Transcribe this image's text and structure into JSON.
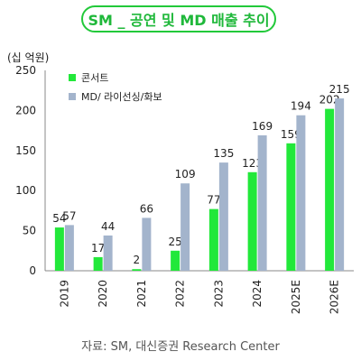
{
  "title": "SM _ 공연 및 MD 매출 추이",
  "source": "자료: SM, 대신증권 Research Center",
  "colors": {
    "concert": "#22e83a",
    "md": "#a3b4cc",
    "accent": "#1fb83a"
  },
  "chart_data": {
    "type": "bar",
    "title": "SM _ 공연 및 MD 매출 추이",
    "unit_label": "(십 억원)",
    "categories": [
      "2019",
      "2020",
      "2021",
      "2022",
      "2023",
      "2024",
      "2025E",
      "2026E"
    ],
    "series": [
      {
        "name": "콘서트",
        "values": [
          54,
          17,
          2,
          25,
          77,
          123,
          159,
          202
        ]
      },
      {
        "name": "MD/ 라이선싱/화보",
        "values": [
          57,
          44,
          66,
          109,
          135,
          169,
          194,
          215
        ]
      }
    ],
    "ylim": [
      0,
      250
    ],
    "yticks": [
      "0",
      "50",
      "100",
      "150",
      "200",
      "250"
    ],
    "legend": "top-left",
    "grid": false
  }
}
